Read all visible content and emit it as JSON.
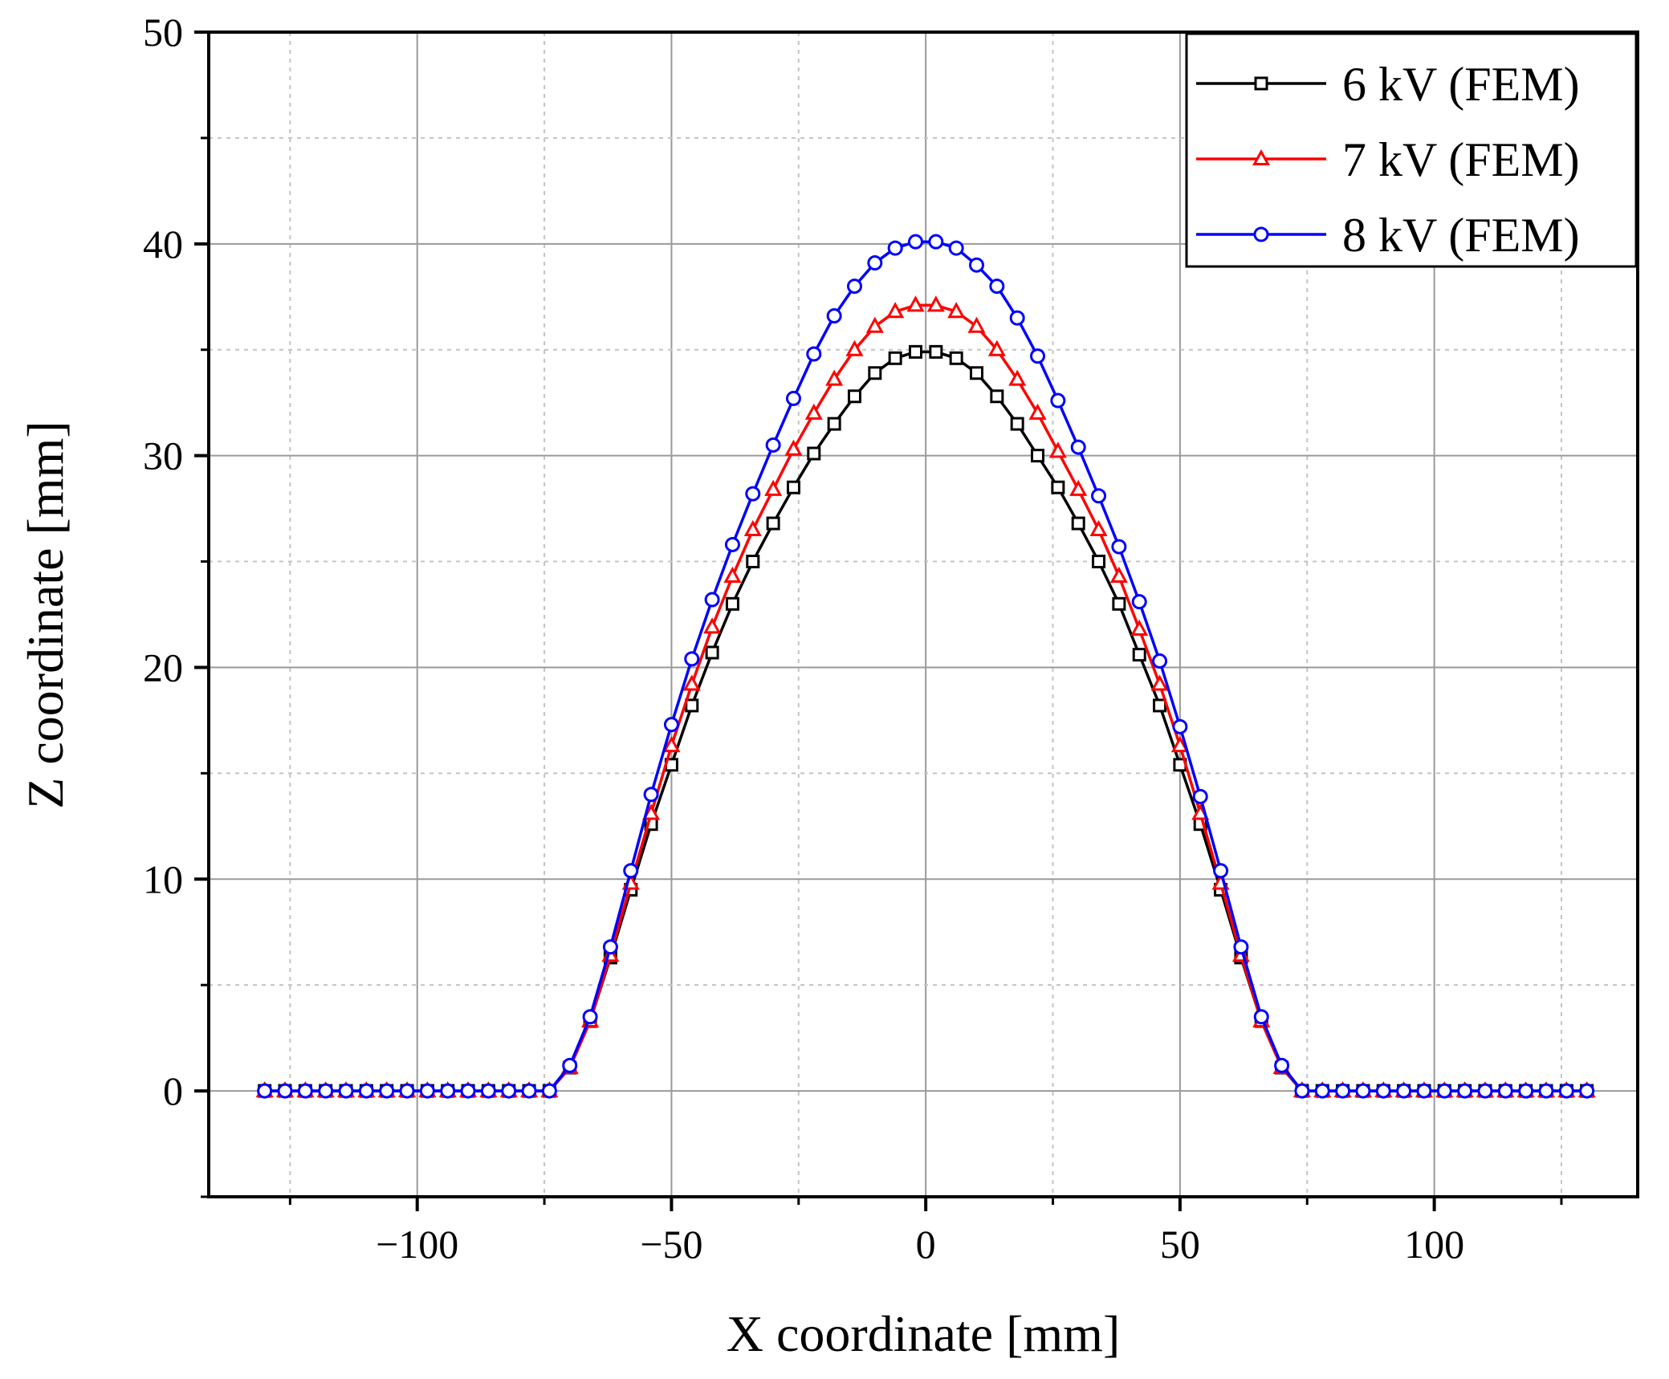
{
  "chart_data": {
    "type": "line",
    "title": "",
    "xlabel": "X coordinate [mm]",
    "ylabel": "Z coordinate [mm]",
    "xlim": [
      -141,
      140
    ],
    "ylim": [
      -5,
      50
    ],
    "xticks": [
      -100,
      -50,
      0,
      50,
      100
    ],
    "xtick_labels": [
      "−100",
      "−50",
      "0",
      "50",
      "100"
    ],
    "yticks": [
      0,
      10,
      20,
      30,
      40,
      50
    ],
    "ytick_labels": [
      "0",
      "10",
      "20",
      "30",
      "40",
      "50"
    ],
    "grid": true,
    "legend_position": "top-right",
    "x": [
      -130,
      -126,
      -122,
      -118,
      -114,
      -110,
      -106,
      -102,
      -98,
      -94,
      -90,
      -86,
      -82,
      -78,
      -74,
      -70,
      -66,
      -62,
      -58,
      -54,
      -50,
      -46,
      -42,
      -38,
      -34,
      -30,
      -26,
      -22,
      -18,
      -14,
      -10,
      -6,
      -2,
      2,
      6,
      10,
      14,
      18,
      22,
      26,
      30,
      34,
      38,
      42,
      46,
      50,
      54,
      58,
      62,
      66,
      70,
      74,
      78,
      82,
      86,
      90,
      94,
      98,
      102,
      106,
      110,
      114,
      118,
      122,
      126,
      130
    ],
    "series": [
      {
        "name": "6 kV (FEM)",
        "color": "#000000",
        "marker": "square",
        "values": [
          0,
          0,
          0,
          0,
          0,
          0,
          0,
          0,
          0,
          0,
          0,
          0,
          0,
          0,
          0,
          1.1,
          3.3,
          6.3,
          9.5,
          12.6,
          15.4,
          18.2,
          20.7,
          23.0,
          25.0,
          26.8,
          28.5,
          30.1,
          31.5,
          32.8,
          33.9,
          34.6,
          34.9,
          34.9,
          34.6,
          33.9,
          32.8,
          31.5,
          30.0,
          28.5,
          26.8,
          25.0,
          23.0,
          20.6,
          18.2,
          15.4,
          12.6,
          9.5,
          6.3,
          3.3,
          1.1,
          0,
          0,
          0,
          0,
          0,
          0,
          0,
          0,
          0,
          0,
          0,
          0,
          0,
          0,
          0
        ]
      },
      {
        "name": "7 kV (FEM)",
        "color": "#ff0000",
        "marker": "triangle",
        "values": [
          0,
          0,
          0,
          0,
          0,
          0,
          0,
          0,
          0,
          0,
          0,
          0,
          0,
          0,
          0,
          1.1,
          3.3,
          6.4,
          9.8,
          13.1,
          16.3,
          19.2,
          21.9,
          24.3,
          26.5,
          28.4,
          30.3,
          32.0,
          33.6,
          35.0,
          36.1,
          36.8,
          37.1,
          37.1,
          36.8,
          36.1,
          35.0,
          33.6,
          32.0,
          30.2,
          28.4,
          26.5,
          24.3,
          21.8,
          19.2,
          16.3,
          13.1,
          9.8,
          6.4,
          3.3,
          1.1,
          0,
          0,
          0,
          0,
          0,
          0,
          0,
          0,
          0,
          0,
          0,
          0,
          0,
          0,
          0
        ]
      },
      {
        "name": "8 kV (FEM)",
        "color": "#0000ff",
        "marker": "circle",
        "values": [
          0,
          0,
          0,
          0,
          0,
          0,
          0,
          0,
          0,
          0,
          0,
          0,
          0,
          0,
          0,
          1.2,
          3.5,
          6.8,
          10.4,
          14.0,
          17.3,
          20.4,
          23.2,
          25.8,
          28.2,
          30.5,
          32.7,
          34.8,
          36.6,
          38.0,
          39.1,
          39.8,
          40.1,
          40.1,
          39.8,
          39.0,
          38.0,
          36.5,
          34.7,
          32.6,
          30.4,
          28.1,
          25.7,
          23.1,
          20.3,
          17.2,
          13.9,
          10.4,
          6.8,
          3.5,
          1.2,
          0,
          0,
          0,
          0,
          0,
          0,
          0,
          0,
          0,
          0,
          0,
          0,
          0,
          0,
          0
        ]
      }
    ]
  }
}
